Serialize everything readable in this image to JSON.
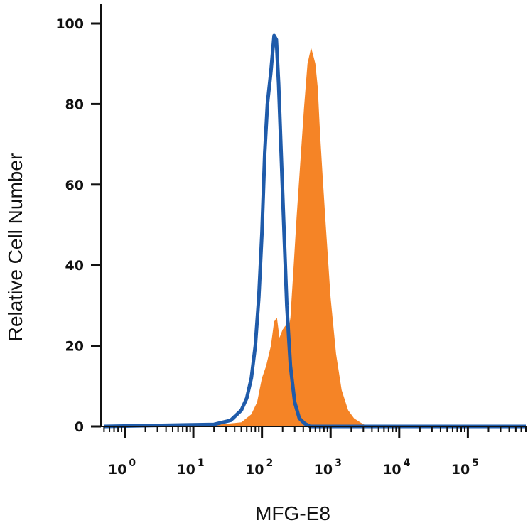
{
  "chart_data": {
    "type": "area",
    "xlabel": "MFG-E8",
    "ylabel": "Relative Cell Number",
    "x_scale": "log",
    "xlim": [
      0.45,
      700000
    ],
    "ylim": [
      0,
      105
    ],
    "y_ticks": [
      "0",
      "20",
      "40",
      "60",
      "80",
      "100"
    ],
    "y_tick_values": [
      0,
      20,
      40,
      60,
      80,
      100
    ],
    "x_ticks": [
      {
        "base": "10",
        "exp": "0",
        "value": 1
      },
      {
        "base": "10",
        "exp": "1",
        "value": 10
      },
      {
        "base": "10",
        "exp": "2",
        "value": 100
      },
      {
        "base": "10",
        "exp": "3",
        "value": 1000
      },
      {
        "base": "10",
        "exp": "4",
        "value": 10000
      },
      {
        "base": "10",
        "exp": "5",
        "value": 100000
      }
    ],
    "grid": false,
    "legend": "none",
    "series": [
      {
        "style": "filled",
        "color": "#F58426",
        "x": [
          0.5,
          20,
          50,
          70,
          85,
          100,
          115,
          135,
          150,
          165,
          180,
          200,
          220,
          240,
          260,
          290,
          320,
          360,
          410,
          460,
          520,
          560,
          600,
          650,
          700,
          760,
          850,
          1000,
          1200,
          1450,
          1800,
          2200,
          2700,
          3200,
          700000
        ],
        "y": [
          0,
          0.3,
          1,
          3,
          6,
          12,
          15,
          20,
          26,
          27,
          22,
          24,
          25,
          23,
          27,
          40,
          52,
          65,
          79,
          90,
          94,
          92,
          90,
          84,
          73,
          63,
          50,
          32,
          18,
          9,
          4,
          2,
          1,
          0.3,
          0
        ]
      },
      {
        "style": "outline",
        "color": "#1F5BAA",
        "x": [
          0.5,
          20,
          35,
          50,
          60,
          70,
          80,
          90,
          100,
          110,
          120,
          135,
          150,
          162,
          175,
          190,
          210,
          230,
          260,
          300,
          350,
          420,
          500,
          700000
        ],
        "y": [
          0,
          0.5,
          1.5,
          4,
          7,
          12,
          20,
          32,
          48,
          68,
          80,
          88,
          97,
          96,
          85,
          68,
          48,
          30,
          15,
          6,
          2,
          0.7,
          0,
          0
        ]
      }
    ]
  }
}
